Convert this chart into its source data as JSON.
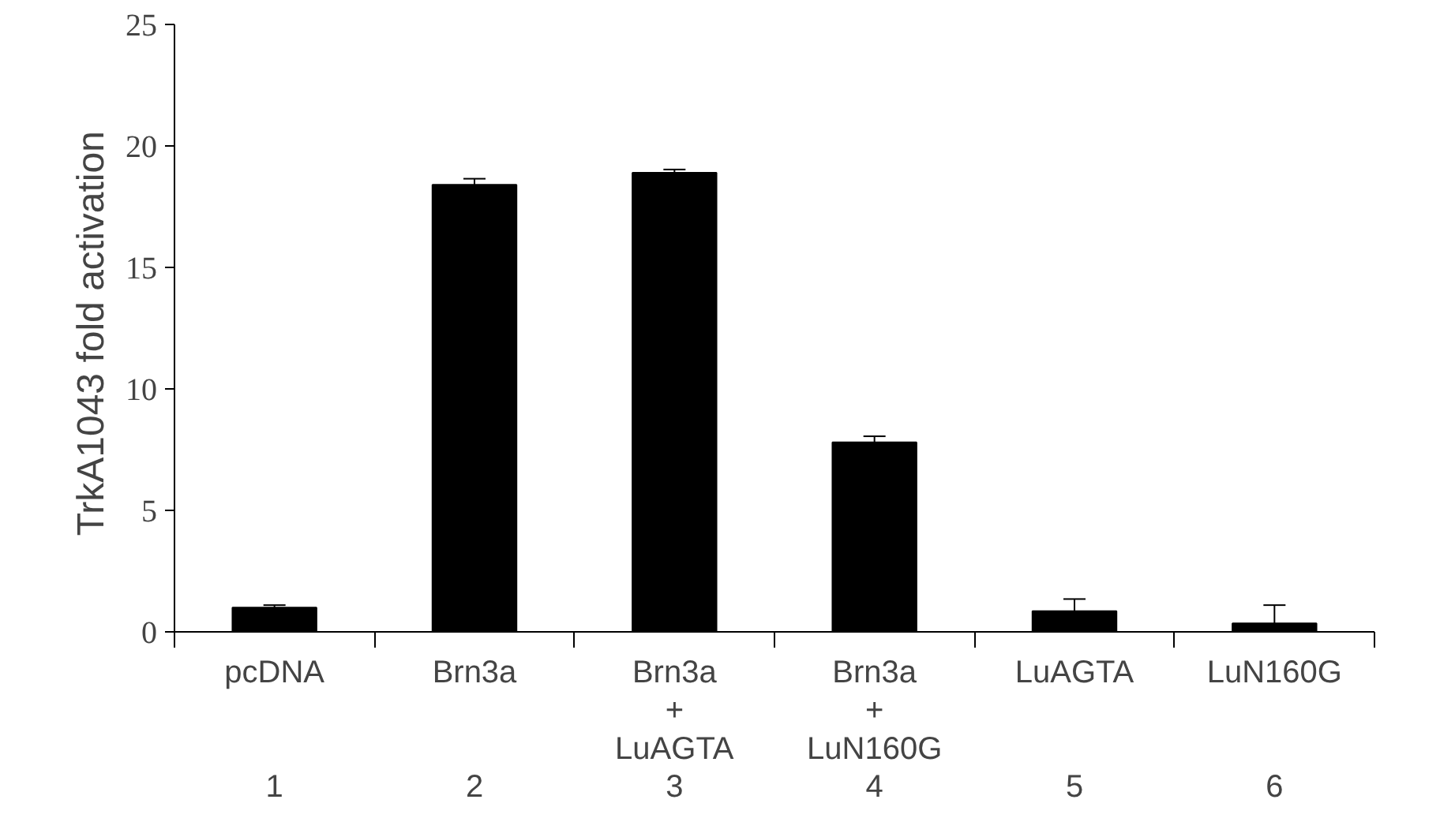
{
  "chart_data": {
    "type": "bar",
    "ylabel": "TrkA1043  fold activation",
    "categories": [
      "pcDNA\n\n\n1",
      "Brn3a\n\n\n2",
      "Brn3a\n+\nLuAGTA\n3",
      "Brn3a\n+\nLuN160G\n4",
      "LuAGTA\n\n\n5",
      "LuN160G\n\n\n6"
    ],
    "values": [
      1.0,
      18.4,
      18.9,
      7.8,
      0.85,
      0.35
    ],
    "errors": [
      0.1,
      0.25,
      0.13,
      0.25,
      0.5,
      0.75
    ],
    "color": "#000000",
    "ylim": [
      0,
      25
    ],
    "yticks": [
      0,
      5,
      10,
      15,
      20,
      25
    ],
    "grid": false
  }
}
